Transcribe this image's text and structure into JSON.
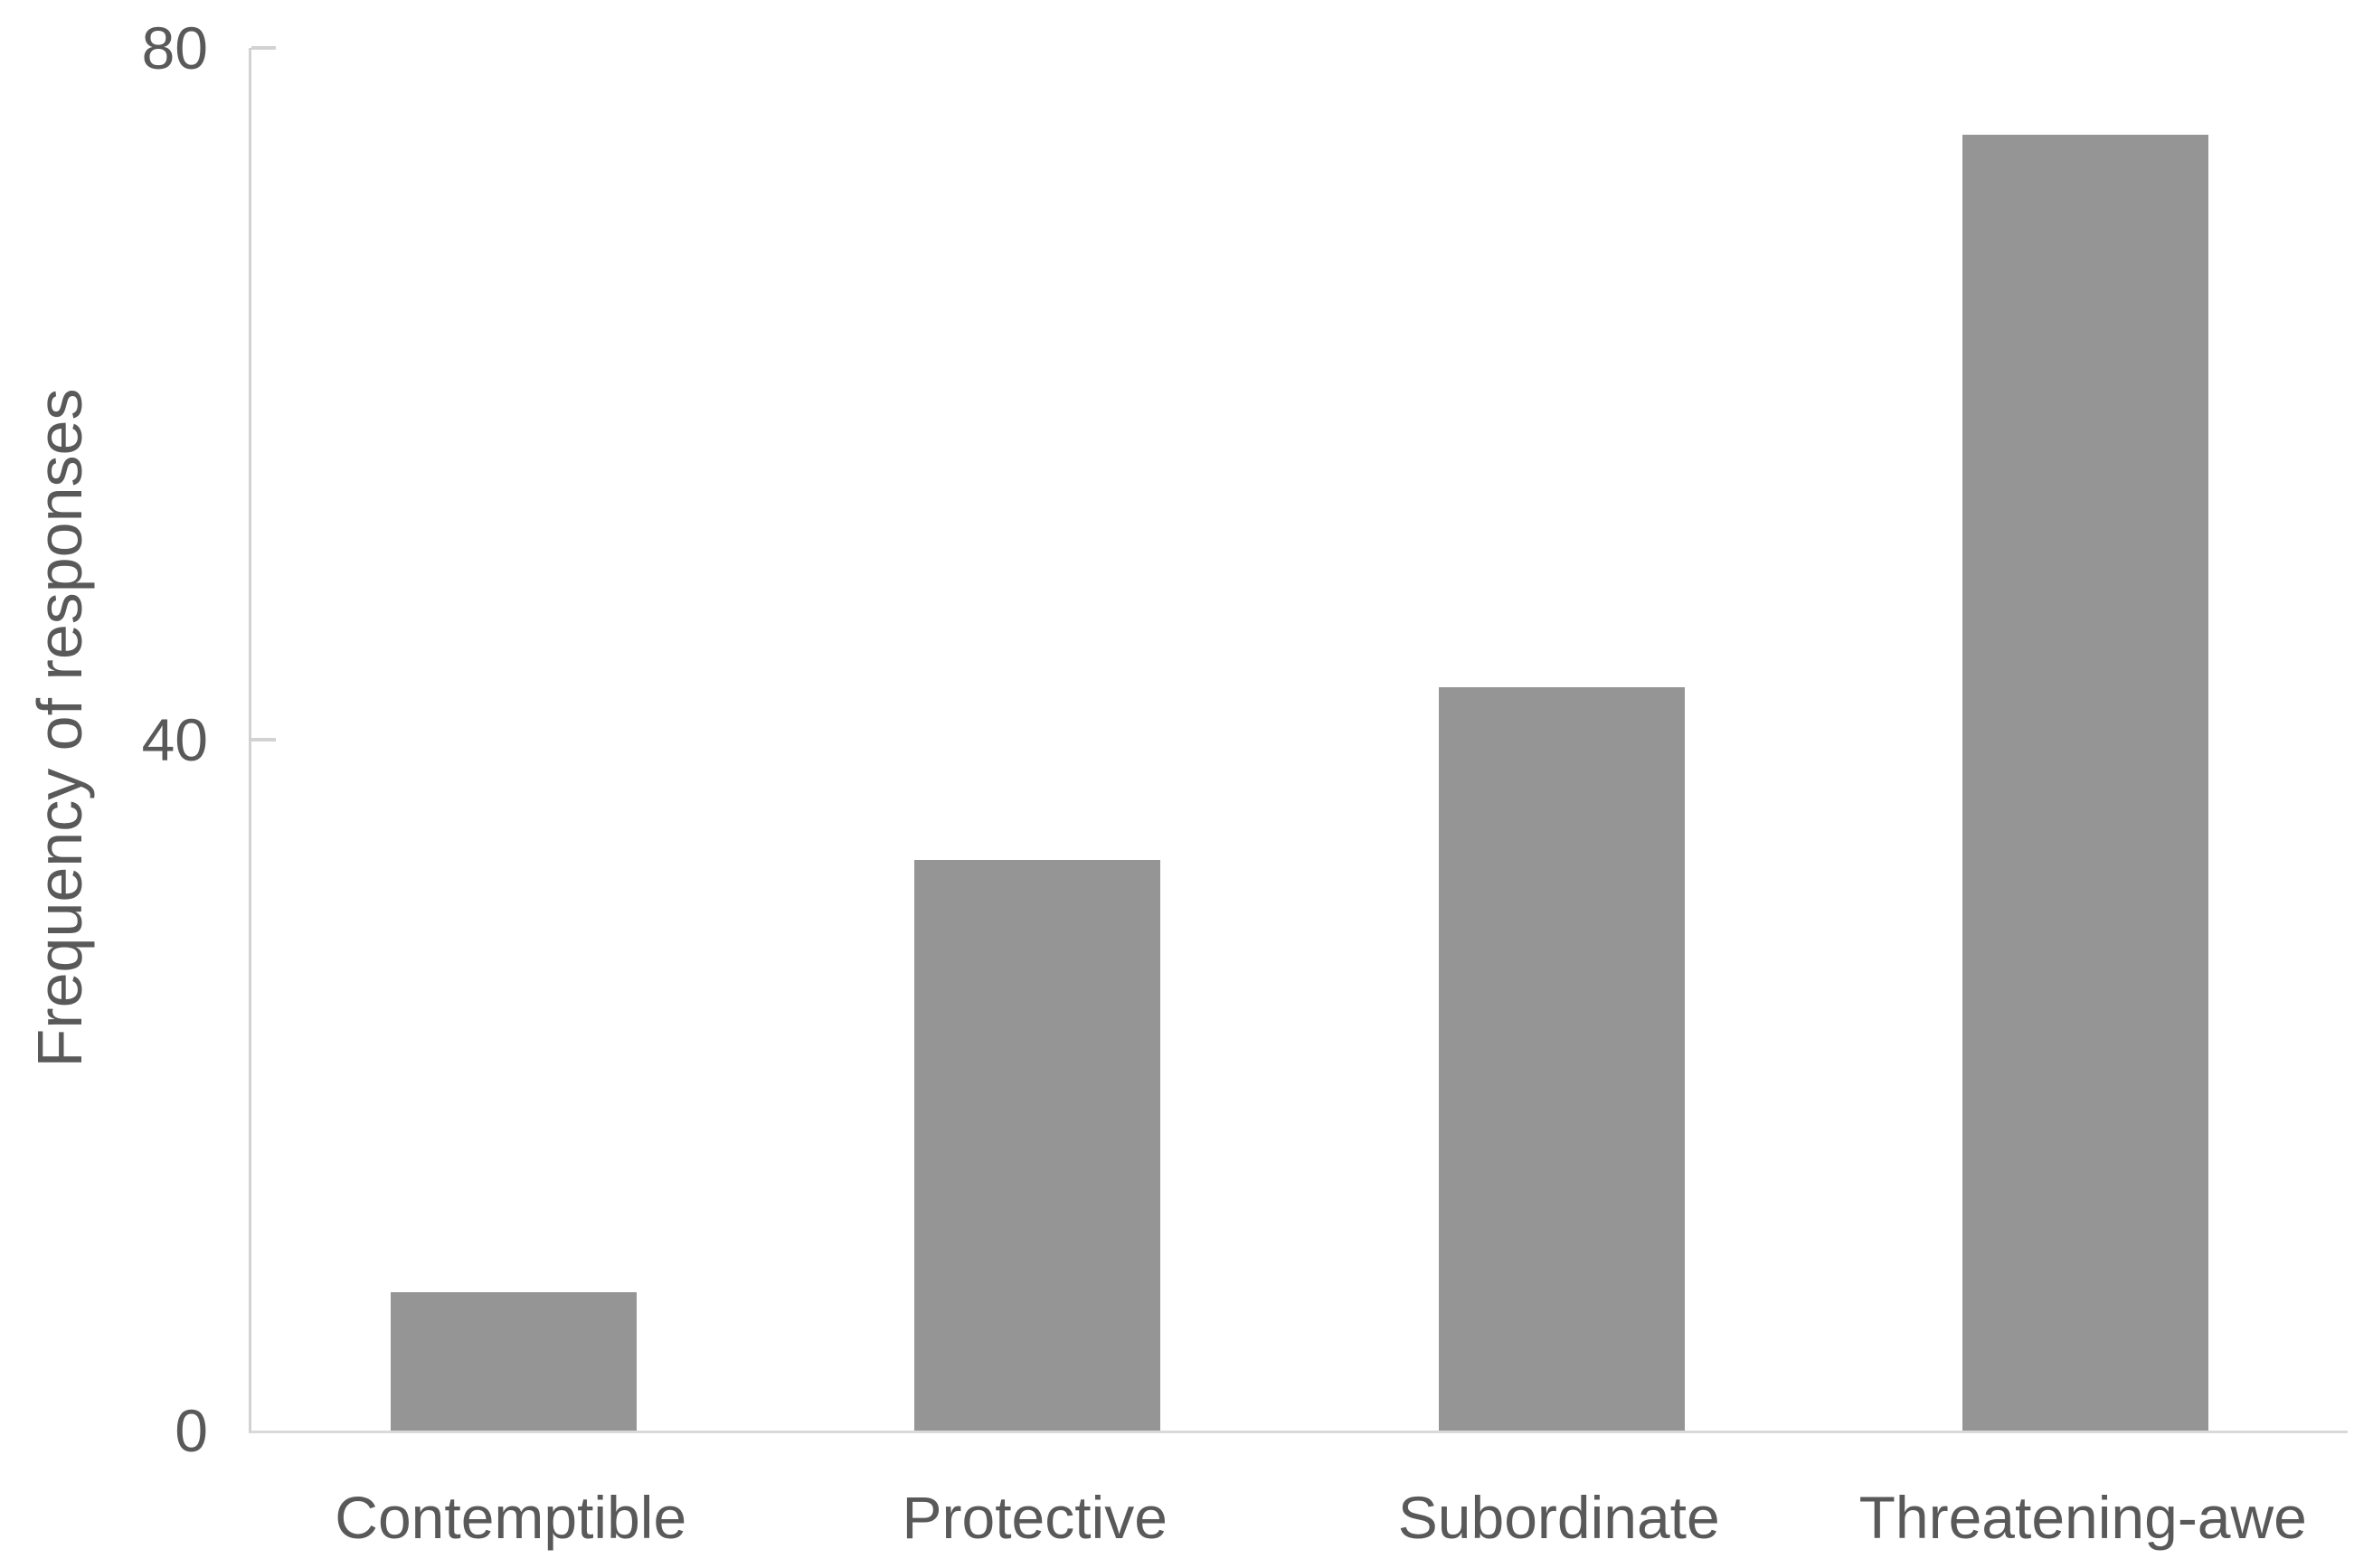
{
  "chart_data": {
    "type": "bar",
    "title": "",
    "categories": [
      "Contemptible",
      "Protective",
      "Subordinate",
      "Threatening-awe"
    ],
    "values": [
      8,
      33,
      43,
      75
    ],
    "xlabel": "",
    "ylabel": "Frequency of responses",
    "yticks": [
      0,
      40,
      80
    ],
    "ylim": [
      0,
      80
    ],
    "grid": false,
    "legend": false,
    "bar_color": "#959595",
    "axis_color": "#d2d2d2",
    "text_color": "#595959",
    "background_color": "#ffffff"
  }
}
